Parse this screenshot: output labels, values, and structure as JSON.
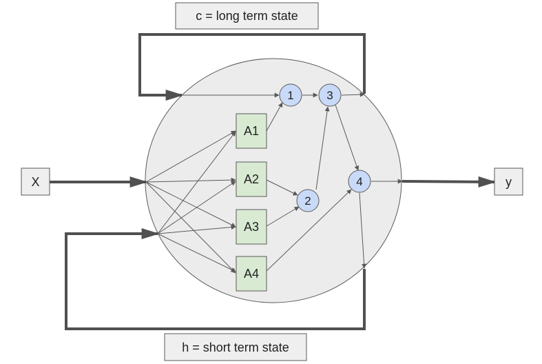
{
  "diagram": {
    "cell_state_label": "c = long term state",
    "hidden_state_label": "h = short term state",
    "input_label": "X",
    "output_label": "y",
    "gates": [
      "A1",
      "A2",
      "A3",
      "A4"
    ],
    "operations": [
      "1",
      "2",
      "3",
      "4"
    ]
  },
  "colors": {
    "cell_fill": "#ececec",
    "gate_fill": "#d9ead3",
    "operation_fill": "#c9daf8",
    "label_fill": "#efefef",
    "stroke": "#595959",
    "thick_line": "#505050"
  }
}
